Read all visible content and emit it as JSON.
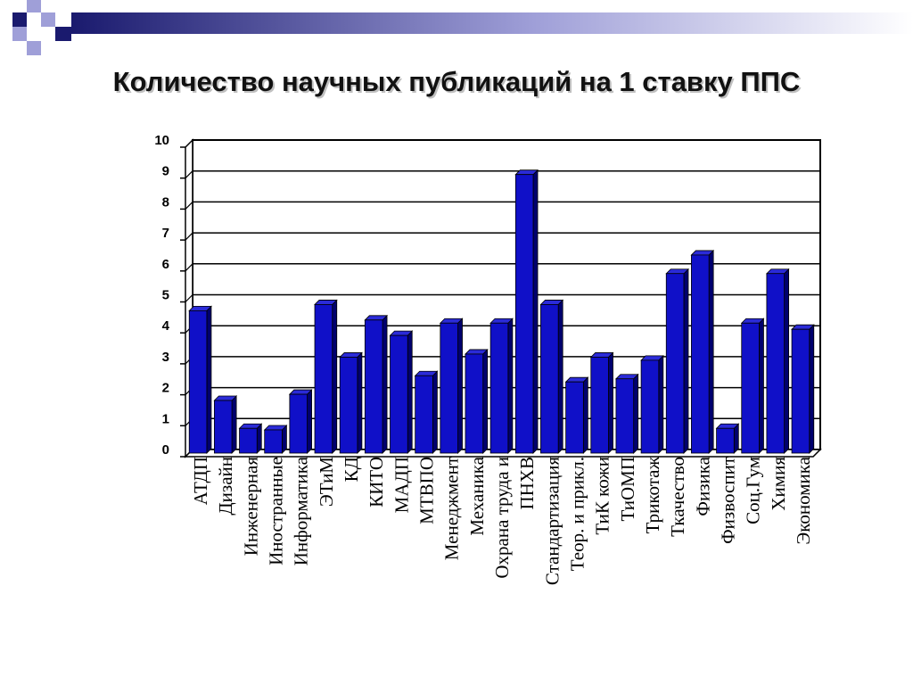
{
  "slide": {
    "title": "Количество научных публикаций на 1 ставку ППС"
  },
  "colors": {
    "bar_front": "#1010c8",
    "bar_side": "#00006e",
    "bar_top": "#2b2bd8",
    "grid": "#000000",
    "deco_navy": "#1a1a6e",
    "deco_lavender": "#9f9fd8",
    "deco_gradient_end": "#ffffff"
  },
  "chart_data": {
    "type": "bar",
    "title": "",
    "xlabel": "",
    "ylabel": "",
    "ylim": [
      0,
      10
    ],
    "yticks": [
      0,
      1,
      2,
      3,
      4,
      5,
      6,
      7,
      8,
      9,
      10
    ],
    "grid": true,
    "legend": "none",
    "style": "3d-bars",
    "categories": [
      "АТДП",
      "Дизайн",
      "Инженерная",
      "Иностранные",
      "Информатика",
      "ЭТиМ",
      "КД",
      "КИТО",
      "МАДП",
      "МТВПО",
      "Менеджмент",
      "Механика",
      "Охрана труда и",
      "ПНХВ",
      "Стандартизация",
      "Теор. и прикл.",
      "ТиК кожи",
      "ТиОМП",
      "Трикотаж",
      "Ткачество",
      "Физика",
      "Физвоспит",
      "Соц.Гум",
      "Химия",
      "Экономика"
    ],
    "values": [
      4.6,
      1.7,
      0.8,
      0.75,
      1.9,
      4.8,
      3.1,
      4.3,
      3.8,
      2.5,
      4.2,
      3.2,
      4.2,
      9.0,
      4.8,
      2.3,
      3.1,
      2.4,
      3.0,
      5.8,
      6.4,
      0.8,
      4.2,
      5.8,
      4.0
    ]
  }
}
